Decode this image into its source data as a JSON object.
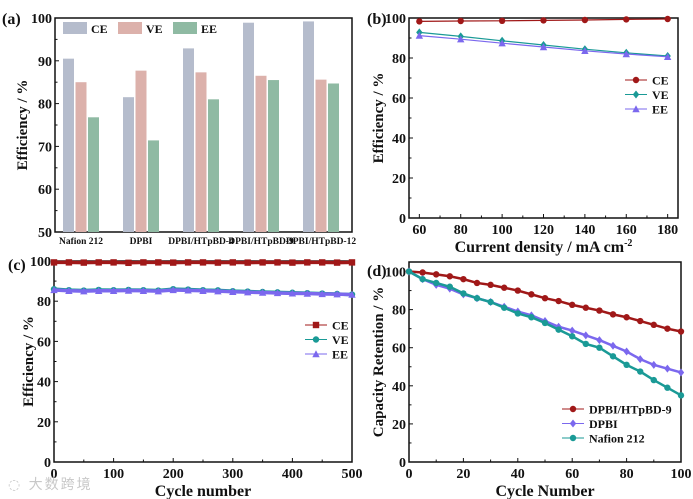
{
  "watermark": "大数跨境",
  "chart_data": [
    {
      "panel": "(a)",
      "type": "bar",
      "xlabel": "",
      "ylabel": "Efficiency / %",
      "ylim": [
        50,
        100
      ],
      "yticks": [
        50,
        60,
        70,
        80,
        90,
        100
      ],
      "categories": [
        "Nafion 212",
        "DPBI",
        "DPBI/HTpBD-4",
        "DPBI/HTpBD-9",
        "DPBI/HTpBD-12"
      ],
      "series": [
        {
          "name": "CE",
          "color": "#b5bccc",
          "values": [
            90.5,
            81.5,
            92.9,
            98.9,
            99.2
          ]
        },
        {
          "name": "VE",
          "color": "#dcb1ab",
          "values": [
            85.0,
            87.7,
            87.3,
            86.5,
            85.6
          ]
        },
        {
          "name": "EE",
          "color": "#8fbaa3",
          "values": [
            76.8,
            71.4,
            81.0,
            85.5,
            84.7
          ]
        }
      ],
      "legend": "top"
    },
    {
      "panel": "(b)",
      "type": "line",
      "xlabel": "Current density / mA cm",
      "xlabel_sup": "-2",
      "ylabel": "Efficiency / %",
      "xlim": [
        55,
        185
      ],
      "ylim": [
        0,
        100
      ],
      "xticks": [
        60,
        80,
        100,
        120,
        140,
        160,
        180
      ],
      "yticks": [
        0,
        20,
        40,
        60,
        80,
        100
      ],
      "x": [
        60,
        80,
        100,
        120,
        140,
        160,
        180
      ],
      "series": [
        {
          "name": "CE",
          "color": "#a01818",
          "marker": "circle",
          "values": [
            98.3,
            98.5,
            98.6,
            98.8,
            99.0,
            99.3,
            99.5
          ]
        },
        {
          "name": "VE",
          "color": "#1a9a96",
          "marker": "diamond",
          "values": [
            92.8,
            90.8,
            88.6,
            86.5,
            84.4,
            82.6,
            81.0
          ]
        },
        {
          "name": "EE",
          "color": "#7b68ee",
          "marker": "triangle",
          "values": [
            91.2,
            89.4,
            87.4,
            85.5,
            83.6,
            82.0,
            80.6
          ]
        }
      ],
      "legend": "right"
    },
    {
      "panel": "(c)",
      "type": "line",
      "xlabel": "Cycle number",
      "ylabel": "Efficiency / %",
      "xlim": [
        0,
        500
      ],
      "ylim": [
        0,
        100
      ],
      "xticks": [
        0,
        100,
        200,
        300,
        400,
        500
      ],
      "yticks": [
        0,
        20,
        40,
        60,
        80,
        100
      ],
      "x": [
        0,
        25,
        50,
        75,
        100,
        125,
        150,
        175,
        200,
        225,
        250,
        275,
        300,
        325,
        350,
        375,
        400,
        425,
        450,
        475,
        500
      ],
      "series": [
        {
          "name": "CE",
          "color": "#a01818",
          "marker": "square",
          "values": [
            99.3,
            99.3,
            99.2,
            99.3,
            99.3,
            99.1,
            99.3,
            99.3,
            99.2,
            99.3,
            99.3,
            99.2,
            99.3,
            99.2,
            99.3,
            99.3,
            99.2,
            99.3,
            99.3,
            99.2,
            99.3
          ]
        },
        {
          "name": "VE",
          "color": "#1a9a96",
          "marker": "circle",
          "values": [
            86.0,
            85.5,
            85.3,
            85.6,
            85.5,
            85.6,
            85.5,
            85.3,
            86.0,
            85.8,
            85.5,
            85.4,
            85.0,
            84.8,
            84.6,
            84.4,
            84.2,
            84.0,
            83.8,
            83.6,
            83.3
          ]
        },
        {
          "name": "EE",
          "color": "#7b68ee",
          "marker": "triangle",
          "values": [
            85.6,
            85.2,
            85.0,
            85.2,
            85.2,
            85.3,
            85.2,
            85.0,
            85.6,
            85.4,
            85.2,
            85.0,
            84.7,
            84.5,
            84.3,
            84.1,
            83.9,
            83.8,
            83.6,
            83.5,
            83.3
          ]
        }
      ],
      "legend": "right"
    },
    {
      "panel": "(d)",
      "type": "line",
      "xlabel": "Cycle Number",
      "ylabel": "Capacity Retention / %",
      "xlim": [
        0,
        100
      ],
      "ylim": [
        0,
        105
      ],
      "xticks": [
        0,
        20,
        40,
        60,
        80,
        100
      ],
      "yticks": [
        0,
        20,
        40,
        60,
        80,
        100
      ],
      "x": [
        0,
        5,
        10,
        15,
        20,
        25,
        30,
        35,
        40,
        45,
        50,
        55,
        60,
        65,
        70,
        75,
        80,
        85,
        90,
        95,
        100
      ],
      "series": [
        {
          "name": "DPBI/HTpBD-9",
          "color": "#a01818",
          "marker": "circle",
          "values": [
            100,
            99.5,
            98.5,
            97.5,
            96,
            94,
            93,
            91.5,
            90,
            88,
            86,
            84.5,
            82.5,
            81,
            79.5,
            77.5,
            76,
            74,
            72,
            70,
            68.5
          ]
        },
        {
          "name": "DPBI",
          "color": "#7b68ee",
          "marker": "diamond",
          "values": [
            100,
            96,
            93,
            91,
            88,
            86,
            84,
            81.5,
            79,
            77,
            74,
            71,
            69,
            66.5,
            64,
            61,
            58,
            54,
            51,
            49,
            47
          ]
        },
        {
          "name": "Nafion 212",
          "color": "#1a9a96",
          "marker": "circle",
          "values": [
            100,
            96,
            94,
            92,
            88.5,
            86,
            84,
            81,
            78,
            76,
            73,
            69.5,
            66,
            62,
            60,
            55.5,
            51,
            47.5,
            43,
            39,
            35
          ]
        }
      ],
      "legend": "bottom-right"
    }
  ]
}
